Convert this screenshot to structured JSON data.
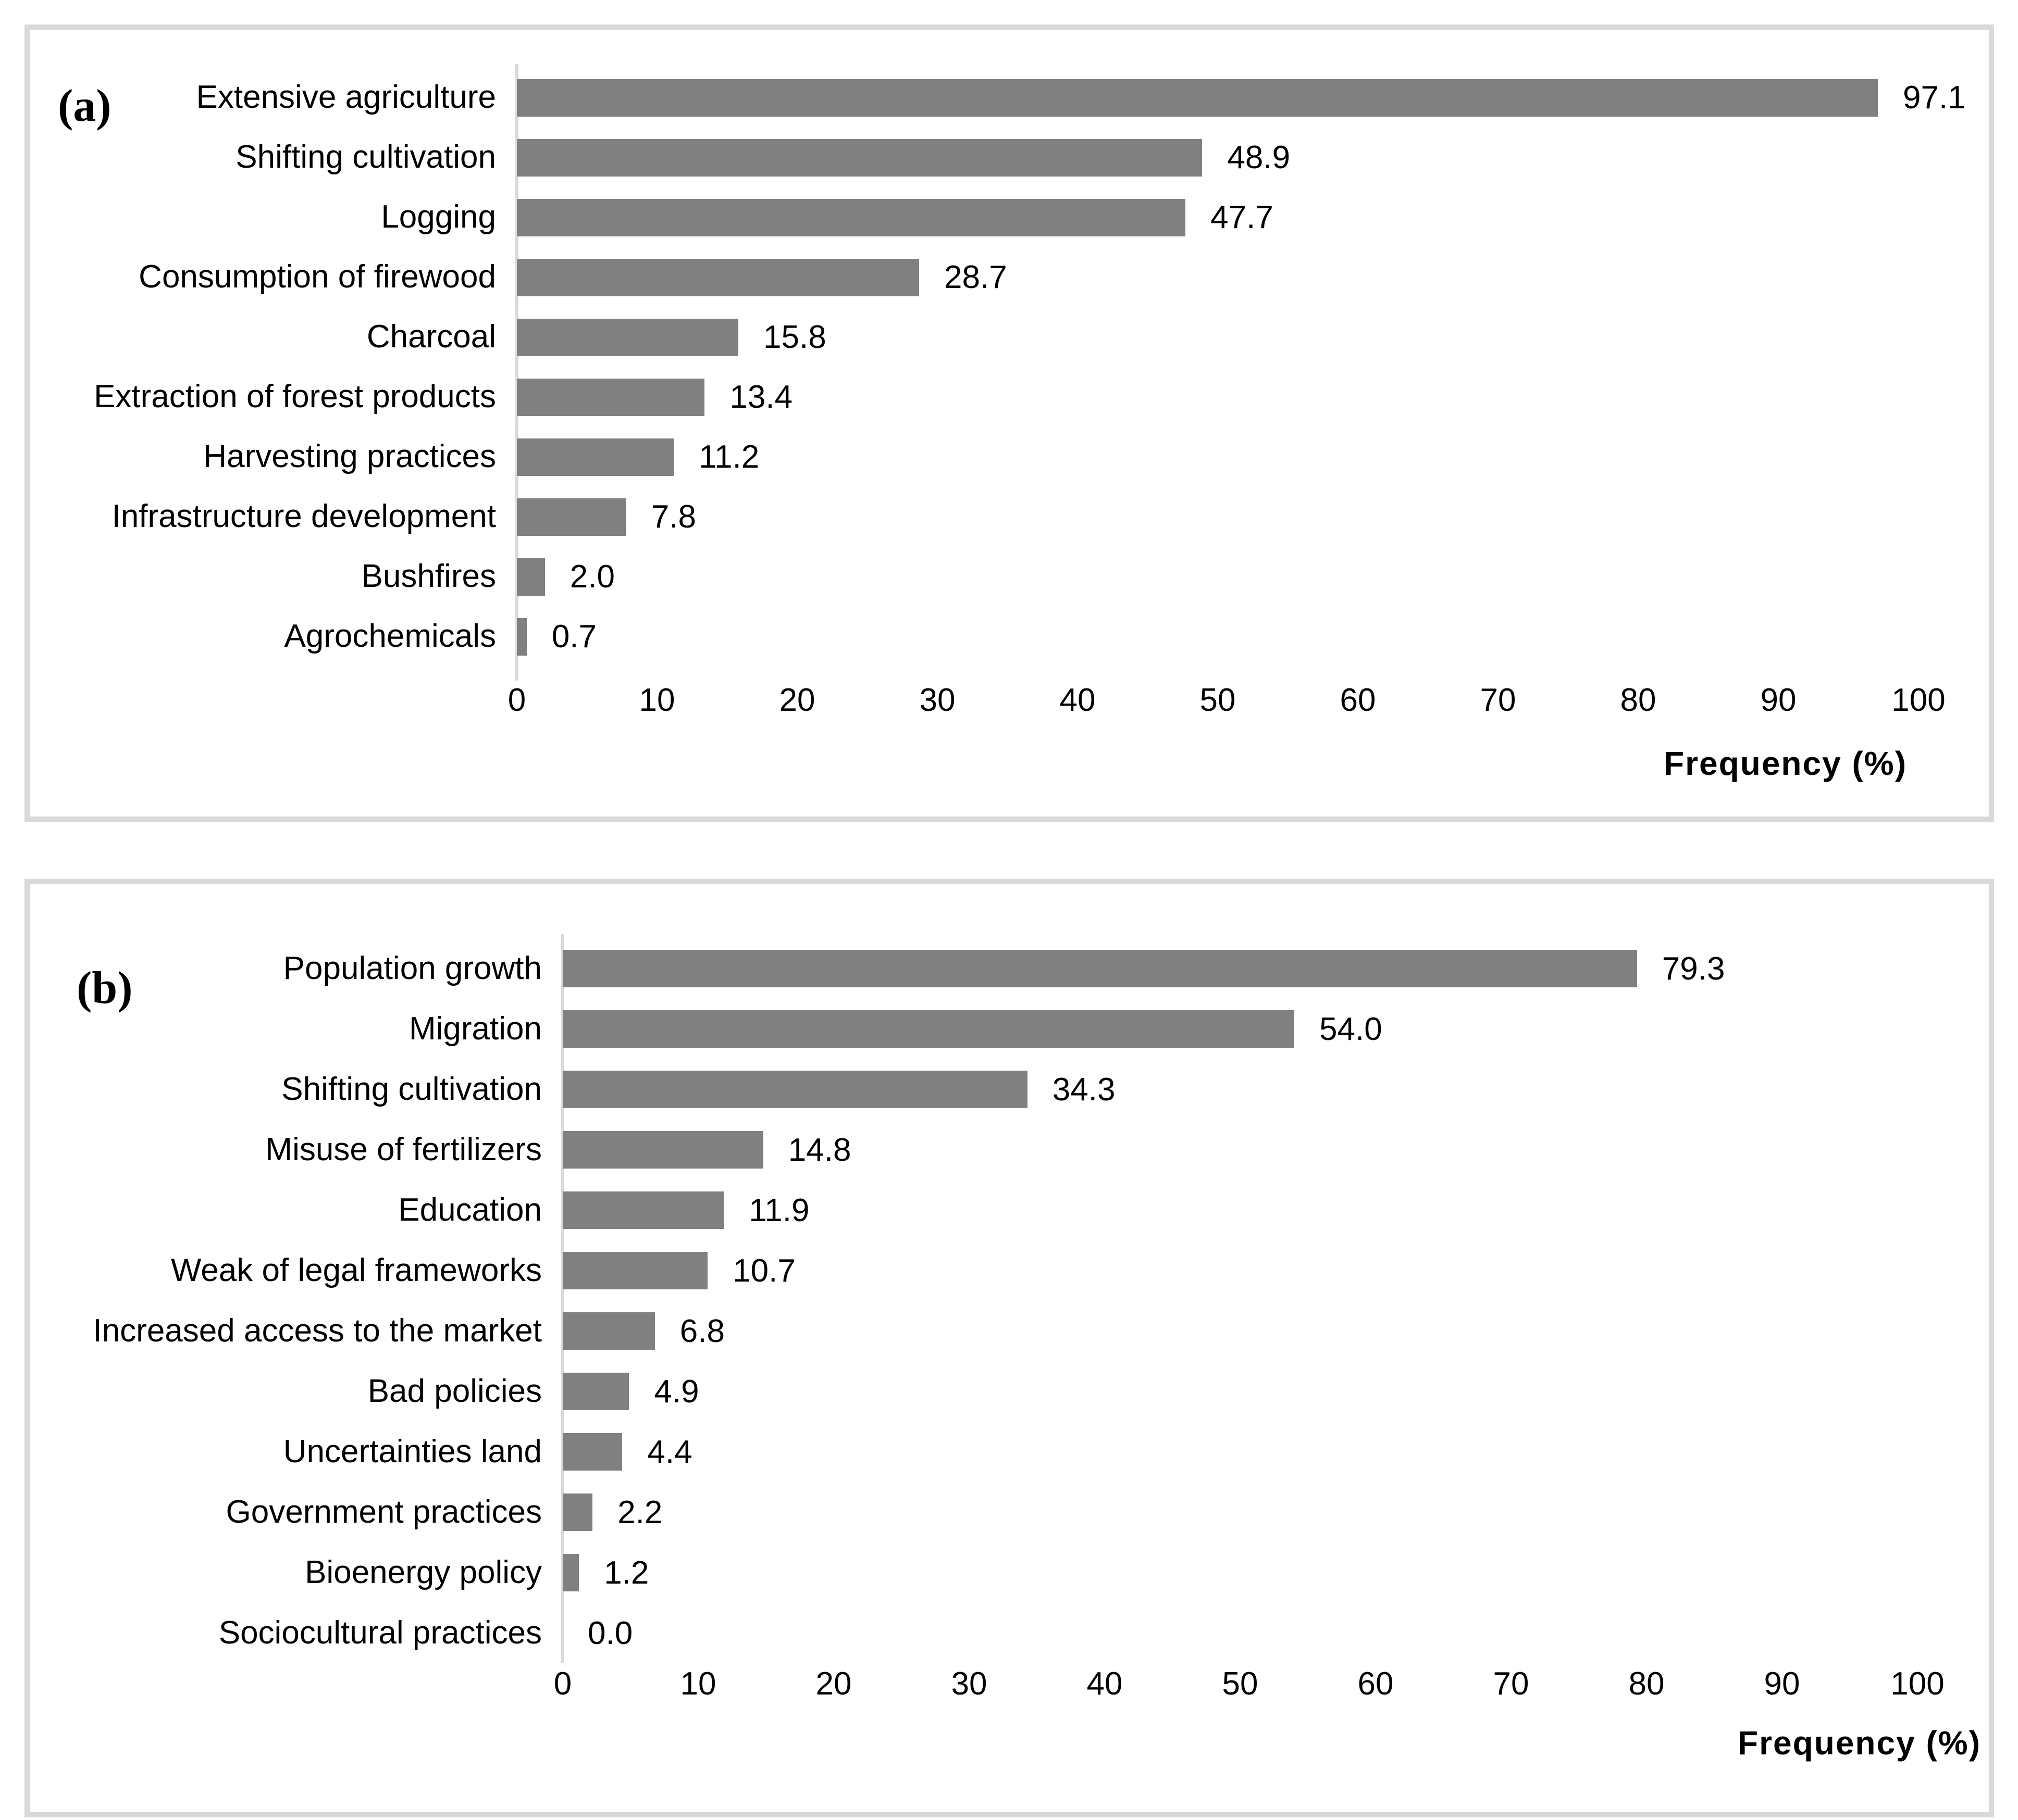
{
  "chart_data": [
    {
      "panel_label": "(a)",
      "type": "bar",
      "orientation": "horizontal",
      "xlabel": "Frequency (%)",
      "xlim": [
        0,
        100
      ],
      "xticks": [
        0,
        10,
        20,
        30,
        40,
        50,
        60,
        70,
        80,
        90,
        100
      ],
      "grid": false,
      "legend": "none",
      "bar_color": "#808080",
      "axis_line_color": "#d9d9d9",
      "value_label_decimals": 1,
      "categories": [
        "Extensive agriculture",
        "Shifting cultivation",
        "Logging",
        "Consumption of firewood",
        "Charcoal",
        "Extraction of forest products",
        "Harvesting practices",
        "Infrastructure development",
        "Bushfires",
        "Agrochemicals"
      ],
      "values": [
        97.1,
        48.9,
        47.7,
        28.7,
        15.8,
        13.4,
        11.2,
        7.8,
        2.0,
        0.7
      ]
    },
    {
      "panel_label": "(b)",
      "type": "bar",
      "orientation": "horizontal",
      "xlabel": "Frequency (%)",
      "xlim": [
        0,
        100
      ],
      "xticks": [
        0,
        10,
        20,
        30,
        40,
        50,
        60,
        70,
        80,
        90,
        100
      ],
      "grid": false,
      "legend": "none",
      "bar_color": "#808080",
      "axis_line_color": "#d9d9d9",
      "value_label_decimals": 1,
      "categories": [
        "Population growth",
        "Migration",
        "Shifting cultivation",
        "Misuse of fertilizers",
        "Education",
        "Weak of legal frameworks",
        "Increased access to the market",
        "Bad policies",
        "Uncertainties land",
        "Government practices",
        "Bioenergy policy",
        "Sociocultural practices"
      ],
      "values": [
        79.3,
        54.0,
        34.3,
        14.8,
        11.9,
        10.7,
        6.8,
        4.9,
        4.4,
        2.2,
        1.2,
        0.0
      ]
    }
  ]
}
